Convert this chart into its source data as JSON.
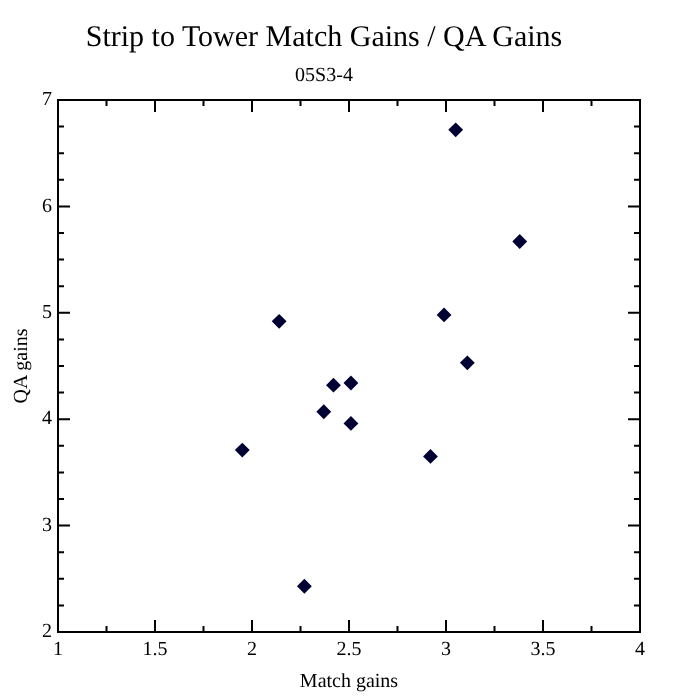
{
  "chart_data": {
    "type": "scatter",
    "title": "Strip to Tower Match Gains / QA Gains",
    "subtitle": "05S3-4",
    "xlabel": "Match gains",
    "ylabel": "QA gains",
    "x": [
      3.05,
      3.38,
      2.14,
      2.99,
      3.11,
      2.42,
      2.51,
      2.37,
      2.51,
      1.95,
      2.92,
      2.27
    ],
    "series": [
      {
        "color": "#000033",
        "values": [
          6.72,
          5.67,
          4.92,
          4.98,
          4.53,
          4.32,
          4.34,
          4.07,
          3.96,
          3.71,
          3.65,
          2.43
        ]
      }
    ],
    "xlim": [
      1,
      4
    ],
    "ylim": [
      2,
      7
    ],
    "xticks": [
      1,
      {
        "value": 1.25,
        "label": null
      },
      1.5,
      {
        "value": 1.75,
        "label": null
      },
      2,
      {
        "value": 2.25,
        "label": null
      },
      2.5,
      {
        "value": 2.75,
        "label": null
      },
      3,
      {
        "value": 3.25,
        "label": null
      },
      3.5,
      {
        "value": 3.75,
        "label": null
      },
      4
    ],
    "yticks": [
      2,
      {
        "value": 2.25,
        "label": null
      },
      {
        "value": 2.5,
        "label": null
      },
      {
        "value": 2.75,
        "label": null
      },
      3,
      {
        "value": 3.25,
        "label": null
      },
      {
        "value": 3.5,
        "label": null
      },
      {
        "value": 3.75,
        "label": null
      },
      4,
      {
        "value": 4.25,
        "label": null
      },
      {
        "value": 4.5,
        "label": null
      },
      {
        "value": 4.75,
        "label": null
      },
      5,
      {
        "value": 5.25,
        "label": null
      },
      {
        "value": 5.5,
        "label": null
      },
      {
        "value": 5.75,
        "label": null
      },
      6,
      {
        "value": 6.25,
        "label": null
      },
      {
        "value": 6.5,
        "label": null
      },
      {
        "value": 6.75,
        "label": null
      },
      7
    ],
    "grid": false,
    "legend": false,
    "marker": "diamond"
  }
}
